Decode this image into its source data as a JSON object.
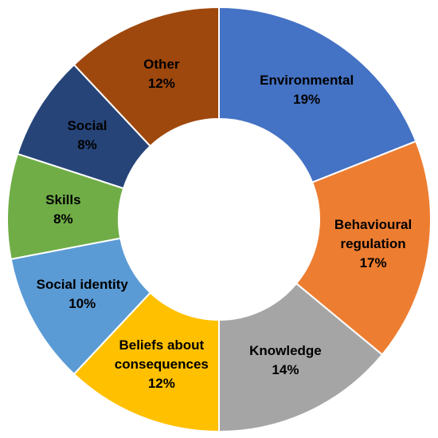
{
  "chart_data": {
    "type": "donut",
    "categories": [
      "Environmental",
      "Behavioural regulation",
      "Knowledge",
      "Beliefs about consequences",
      "Social identity",
      "Skills",
      "Social",
      "Other"
    ],
    "values": [
      19,
      17,
      14,
      12,
      10,
      8,
      8,
      12
    ],
    "value_labels": [
      "19%",
      "17%",
      "14%",
      "12%",
      "10%",
      "8%",
      "8%",
      "12%"
    ],
    "colors": [
      "#4472c4",
      "#ed7d31",
      "#a5a5a5",
      "#ffc000",
      "#5b9bd5",
      "#70ad47",
      "#264478",
      "#9e480e"
    ]
  }
}
